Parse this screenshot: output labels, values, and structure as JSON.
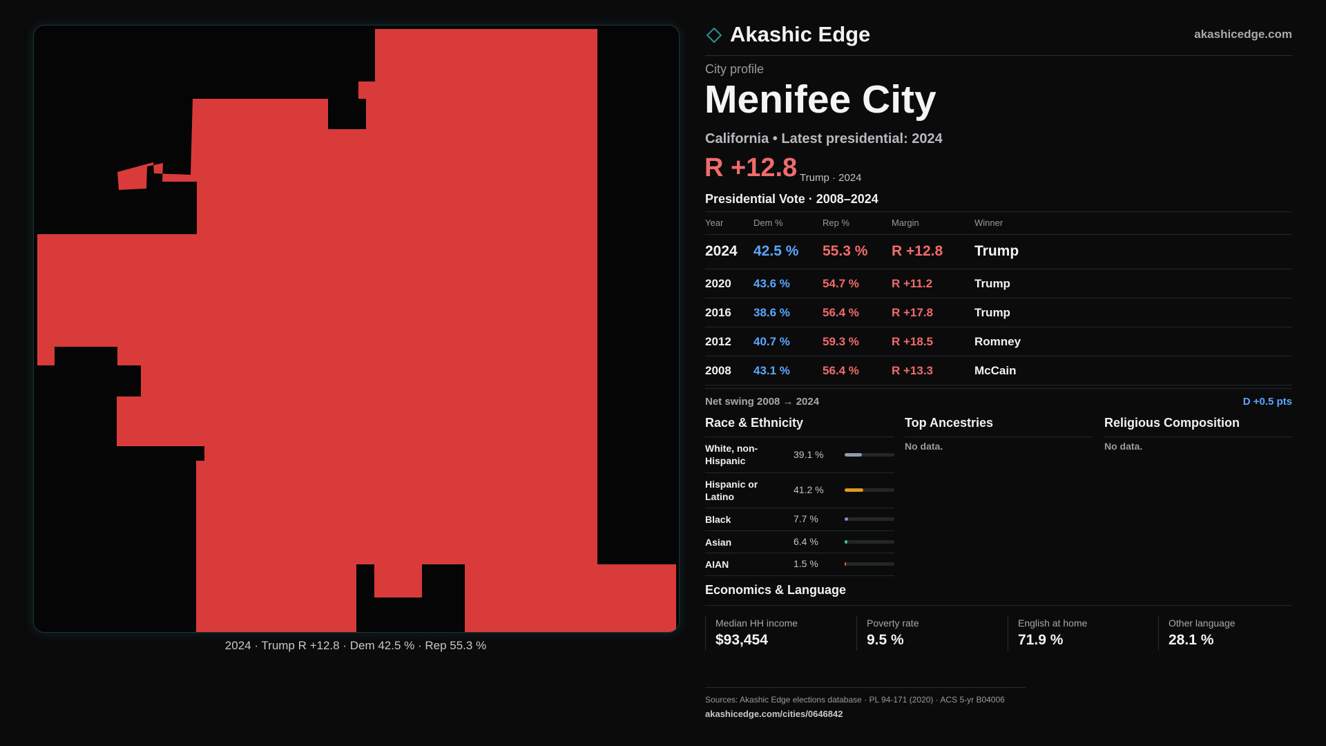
{
  "brand": {
    "name": "Akashic Edge",
    "url": "akashicedge.com",
    "logo_icon": "diamond-outline-icon",
    "accent_color": "#2f8f97"
  },
  "map": {
    "caption": "2024 · Trump R +12.8 · Dem 42.5 % · Rep 55.3 %",
    "fill_color": "#d93b3b"
  },
  "profile": {
    "eyebrow": "City profile",
    "city_name": "Menifee City",
    "subtitle": "California • Latest presidential: 2024",
    "headline_margin": "R +12.8",
    "headline_note": "Trump · 2024"
  },
  "presidential": {
    "heading": "Presidential Vote · 2008–2024",
    "columns": [
      "Year",
      "Dem %",
      "Rep %",
      "Margin",
      "Winner"
    ],
    "rows": [
      {
        "year": "2024",
        "dem": "42.5 %",
        "rep": "55.3 %",
        "margin": "R +12.8",
        "winner": "Trump"
      },
      {
        "year": "2020",
        "dem": "43.6 %",
        "rep": "54.7 %",
        "margin": "R +11.2",
        "winner": "Trump"
      },
      {
        "year": "2016",
        "dem": "38.6 %",
        "rep": "56.4 %",
        "margin": "R +17.8",
        "winner": "Trump"
      },
      {
        "year": "2012",
        "dem": "40.7 %",
        "rep": "59.3 %",
        "margin": "R +18.5",
        "winner": "Romney"
      },
      {
        "year": "2008",
        "dem": "43.1 %",
        "rep": "56.4 %",
        "margin": "R +13.3",
        "winner": "McCain"
      }
    ],
    "dem_color": "#5aa7ff",
    "rep_color": "#f26b6b"
  },
  "swing": {
    "label": "Net swing 2008 → 2024",
    "value": "D +0.5 pts"
  },
  "race": {
    "heading": "Race & Ethnicity",
    "items": [
      {
        "label": "White, non-Hispanic",
        "pct": "39.1 %",
        "fraction": 0.391,
        "color": "#8f9bb0"
      },
      {
        "label": "Hispanic or Latino",
        "pct": "41.2 %",
        "fraction": 0.412,
        "color": "#e09a1e"
      },
      {
        "label": "Black",
        "pct": "7.7 %",
        "fraction": 0.077,
        "color": "#9b7ce0"
      },
      {
        "label": "Asian",
        "pct": "6.4 %",
        "fraction": 0.064,
        "color": "#3fbf84"
      },
      {
        "label": "AIAN",
        "pct": "1.5 %",
        "fraction": 0.015,
        "color": "#e0662f"
      }
    ]
  },
  "ancestries": {
    "heading": "Top Ancestries",
    "empty": "No data."
  },
  "religion": {
    "heading": "Religious Composition",
    "empty": "No data."
  },
  "economics": {
    "heading": "Economics & Language",
    "stats": [
      {
        "label": "Median HH income",
        "value": "$93,454"
      },
      {
        "label": "Poverty rate",
        "value": "9.5 %"
      },
      {
        "label": "English at home",
        "value": "71.9 %"
      },
      {
        "label": "Other language",
        "value": "28.1 %"
      }
    ]
  },
  "footer": {
    "sources": "Sources: Akashic Edge elections database · PL 94-171 (2020) · ACS 5-yr B04006",
    "url": "akashicedge.com/cities/0646842"
  }
}
